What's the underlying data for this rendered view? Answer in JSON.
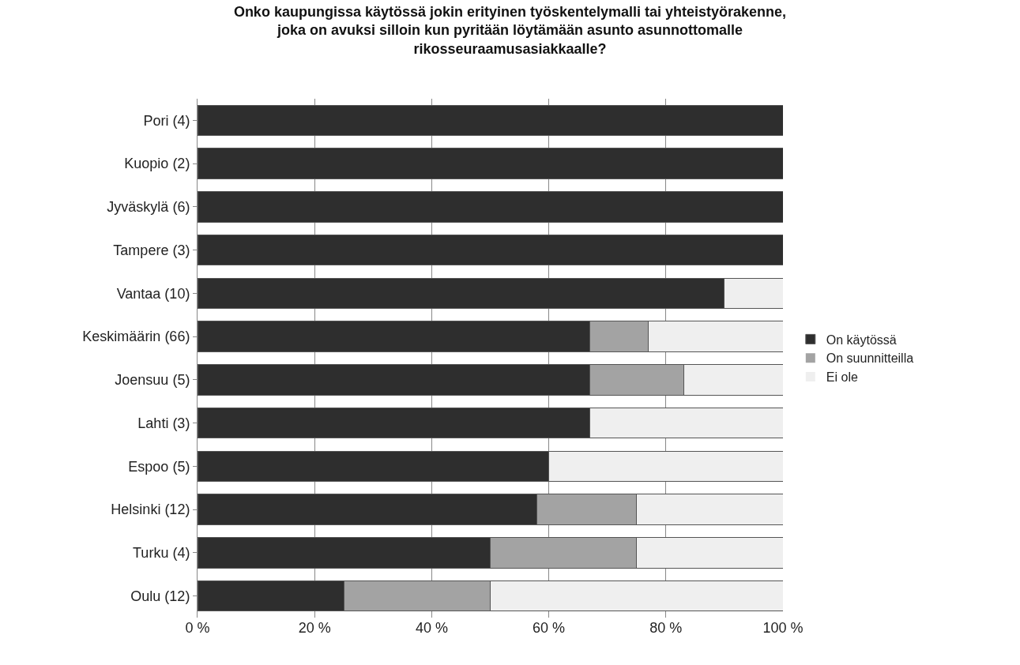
{
  "chart_data": {
    "type": "bar",
    "orientation": "horizontal",
    "stacked": true,
    "title": "Onko kaupungissa käytössä jokin erityinen työskentelymalli tai yhteistyörakenne,\njoka on avuksi silloin kun pyritään löytämään asunto asunnottomalle\nrikosseuraamusasiakkaalle?",
    "categories": [
      "Pori (4)",
      "Kuopio (2)",
      "Jyväskylä (6)",
      "Tampere (3)",
      "Vantaa (10)",
      "Keskimäärin (66)",
      "Joensuu (5)",
      "Lahti (3)",
      "Espoo (5)",
      "Helsinki (12)",
      "Turku (4)",
      "Oulu (12)"
    ],
    "series": [
      {
        "name": "On käytössä",
        "color": "#2e2e2e",
        "values": [
          100,
          100,
          100,
          100,
          90,
          67,
          67,
          67,
          60,
          58,
          50,
          25
        ]
      },
      {
        "name": "On suunnitteilla",
        "color": "#a3a3a3",
        "values": [
          0,
          0,
          0,
          0,
          0,
          10,
          16,
          0,
          0,
          17,
          25,
          25
        ]
      },
      {
        "name": "Ei ole",
        "color": "#efefef",
        "values": [
          0,
          0,
          0,
          0,
          10,
          23,
          17,
          33,
          40,
          25,
          25,
          50
        ]
      }
    ],
    "xlim": [
      0,
      100
    ],
    "xticks": [
      {
        "value": 0,
        "label": "0 %"
      },
      {
        "value": 20,
        "label": "20 %"
      },
      {
        "value": 40,
        "label": "40 %"
      },
      {
        "value": 60,
        "label": "60 %"
      },
      {
        "value": 80,
        "label": "80 %"
      },
      {
        "value": 100,
        "label": "100 %"
      }
    ],
    "grid": "x",
    "legend": "right"
  }
}
